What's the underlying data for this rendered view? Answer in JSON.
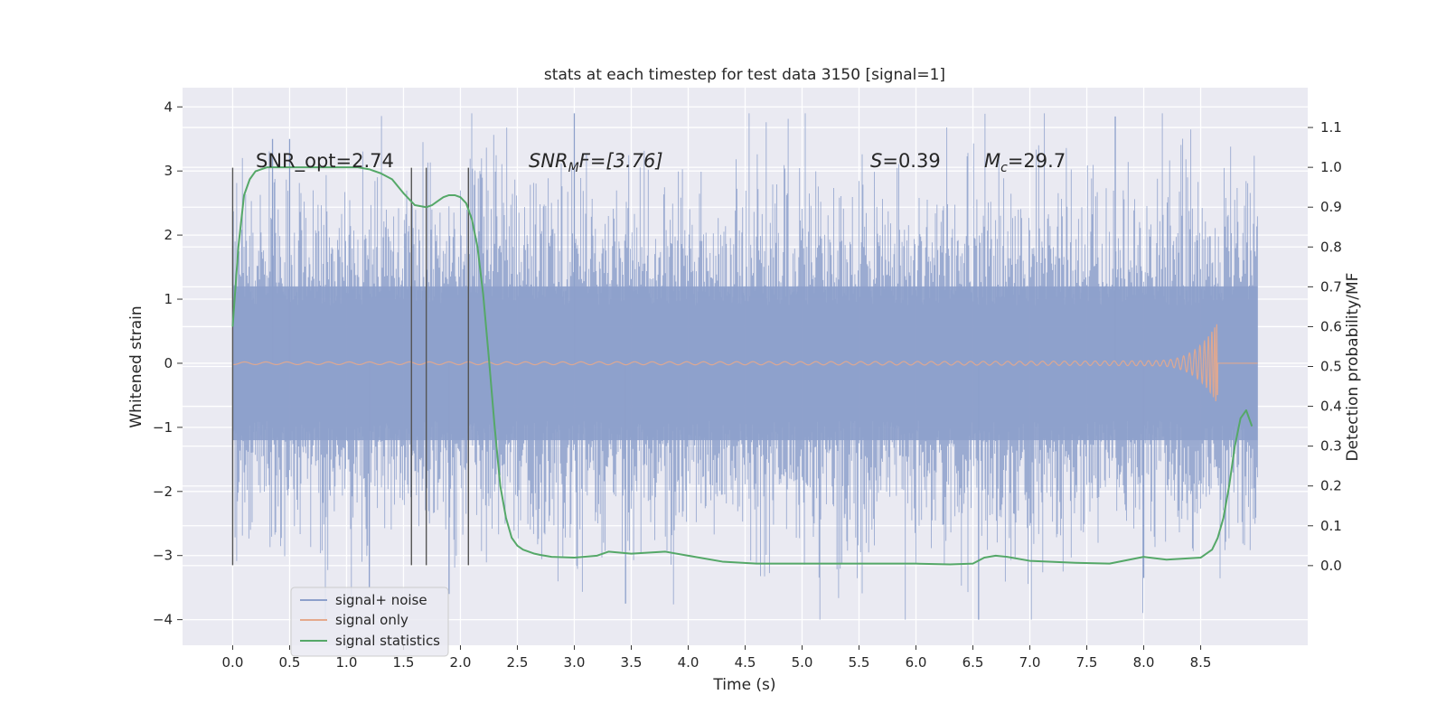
{
  "chart_data": {
    "type": "line",
    "title": "stats at each timestep for test data 3150 [signal=1]",
    "xlabel": "Time (s)",
    "ylabel_left": "Whitened strain",
    "ylabel_right": "Detection probability/MF",
    "xlim": [
      -0.44,
      9.44
    ],
    "ylim_left": [
      -4.4,
      4.3
    ],
    "ylim_right": [
      -0.2,
      1.2
    ],
    "xticks": [
      "0.0",
      "0.5",
      "1.0",
      "1.5",
      "2.0",
      "2.5",
      "3.0",
      "3.5",
      "4.0",
      "4.5",
      "5.0",
      "5.5",
      "6.0",
      "6.5",
      "7.0",
      "7.5",
      "8.0",
      "8.5"
    ],
    "yticks_left": [
      "4",
      "3",
      "2",
      "1",
      "0",
      "−1",
      "−2",
      "−3",
      "−4"
    ],
    "yticks_right": [
      "1.1",
      "1.0",
      "0.9",
      "0.8",
      "0.7",
      "0.6",
      "0.5",
      "0.4",
      "0.3",
      "0.2",
      "0.1",
      "0.0"
    ],
    "grid": true,
    "annotations": {
      "snr_opt": "SNR_opt=2.74",
      "snr_mf_base": "SNR",
      "snr_mf_sub": "M",
      "snr_mf_rest": "F=[3.76]",
      "s_var": "S",
      "s_value": "=0.39",
      "mc_var": "M",
      "mc_sub": "c",
      "mc_value": "=29.7"
    },
    "vlines": {
      "times": [
        0.0,
        1.57,
        1.7,
        2.07
      ],
      "ymin": -3.15,
      "ymax": 3.05
    },
    "series": [
      {
        "name": "signal+ noise",
        "axis": "left",
        "color": "#8da0cb",
        "description": "whitened strain noise samples spanning 0 to 9 s",
        "x_range": [
          0.0,
          9.0
        ],
        "typical_band": [
          -1.2,
          1.2
        ],
        "max": 3.9,
        "min": -4.0
      },
      {
        "name": "signal only",
        "axis": "left",
        "color": "#e5a98c",
        "description": "chirp waveform growing in amplitude until merger",
        "x_range": [
          0.0,
          8.65
        ],
        "merger_time": 8.65,
        "peak_amplitude": 0.62
      },
      {
        "name": "signal statistics",
        "axis": "right",
        "color": "#55a868",
        "x": [
          0.0,
          0.05,
          0.1,
          0.15,
          0.2,
          0.3,
          0.5,
          0.8,
          1.0,
          1.1,
          1.2,
          1.3,
          1.4,
          1.5,
          1.6,
          1.7,
          1.75,
          1.8,
          1.85,
          1.9,
          1.95,
          2.0,
          2.05,
          2.1,
          2.15,
          2.2,
          2.25,
          2.3,
          2.35,
          2.4,
          2.45,
          2.5,
          2.55,
          2.6,
          2.65,
          2.7,
          2.8,
          3.0,
          3.2,
          3.3,
          3.5,
          3.8,
          4.0,
          4.3,
          4.6,
          5.0,
          5.5,
          5.8,
          6.0,
          6.3,
          6.5,
          6.6,
          6.7,
          6.8,
          7.0,
          7.4,
          7.7,
          8.0,
          8.2,
          8.5,
          8.6,
          8.65,
          8.7,
          8.75,
          8.8,
          8.85,
          8.9,
          8.95
        ],
        "y": [
          0.6,
          0.8,
          0.93,
          0.97,
          0.99,
          1.0,
          1.0,
          1.0,
          1.0,
          1.0,
          0.995,
          0.985,
          0.97,
          0.935,
          0.905,
          0.9,
          0.905,
          0.915,
          0.925,
          0.93,
          0.93,
          0.925,
          0.91,
          0.87,
          0.8,
          0.68,
          0.52,
          0.35,
          0.2,
          0.12,
          0.07,
          0.05,
          0.04,
          0.035,
          0.03,
          0.027,
          0.022,
          0.02,
          0.025,
          0.035,
          0.03,
          0.035,
          0.025,
          0.01,
          0.005,
          0.005,
          0.005,
          0.005,
          0.005,
          0.003,
          0.005,
          0.02,
          0.025,
          0.022,
          0.012,
          0.007,
          0.005,
          0.022,
          0.015,
          0.02,
          0.04,
          0.07,
          0.12,
          0.2,
          0.3,
          0.37,
          0.39,
          0.35
        ]
      }
    ],
    "legend": {
      "position": "lower-left",
      "entries": [
        {
          "label": "signal+ noise",
          "color": "#8da0cb"
        },
        {
          "label": "signal only",
          "color": "#e5a98c"
        },
        {
          "label": "signal statistics",
          "color": "#55a868"
        }
      ]
    }
  }
}
